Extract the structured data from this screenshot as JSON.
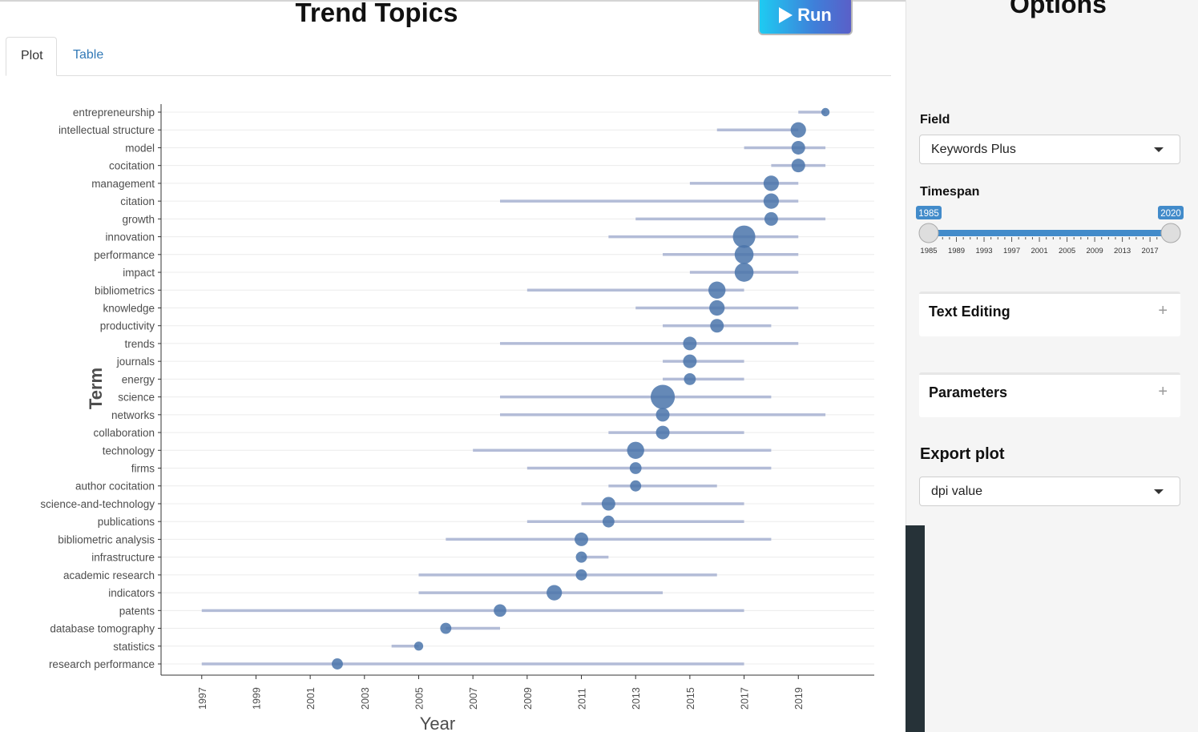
{
  "header": {
    "title": "Trend Topics",
    "run_label": "Run"
  },
  "tabs": [
    {
      "label": "Plot",
      "active": true
    },
    {
      "label": "Table",
      "active": false
    }
  ],
  "sidebar": {
    "title": "Options",
    "field": {
      "label": "Field",
      "value": "Keywords Plus"
    },
    "timespan": {
      "label": "Timespan",
      "min": 1985,
      "max": 2020,
      "value_from": 1985,
      "value_to": 2020,
      "tick_labels": [
        "1985",
        "1989",
        "1993",
        "1997",
        "2001",
        "2005",
        "2009",
        "2013",
        "2017"
      ]
    },
    "panels": [
      {
        "title": "Text Editing",
        "icon": "plus-icon"
      },
      {
        "title": "Parameters",
        "icon": "plus-icon"
      }
    ],
    "export": {
      "label": "Export plot",
      "value": "dpi value"
    }
  },
  "colors": {
    "bar": "#b3bcd7",
    "point": "#4a74aa",
    "slider": "#428bca",
    "tab_link": "#337ab7"
  },
  "chart_data": {
    "type": "scatter",
    "xlabel": "Year",
    "ylabel": "Term",
    "xticks": [
      1997,
      1999,
      2001,
      2003,
      2005,
      2007,
      2009,
      2011,
      2013,
      2015,
      2017,
      2019
    ],
    "xlim": [
      1995.5,
      2021.8
    ],
    "points": [
      {
        "term": "entrepreneurship",
        "q1": 2019,
        "q3": 2020,
        "median": 2020,
        "size": 1
      },
      {
        "term": "intellectual structure",
        "q1": 2016,
        "q3": 2019,
        "median": 2019,
        "size": 3
      },
      {
        "term": "model",
        "q1": 2017,
        "q3": 2020,
        "median": 2019,
        "size": 2.5
      },
      {
        "term": "cocitation",
        "q1": 2018,
        "q3": 2020,
        "median": 2019,
        "size": 2.5
      },
      {
        "term": "management",
        "q1": 2015,
        "q3": 2019,
        "median": 2018,
        "size": 3
      },
      {
        "term": "citation",
        "q1": 2008,
        "q3": 2019,
        "median": 2018,
        "size": 3
      },
      {
        "term": "growth",
        "q1": 2013,
        "q3": 2020,
        "median": 2018,
        "size": 2.5
      },
      {
        "term": "innovation",
        "q1": 2012,
        "q3": 2019,
        "median": 2017,
        "size": 5
      },
      {
        "term": "performance",
        "q1": 2014,
        "q3": 2019,
        "median": 2017,
        "size": 4
      },
      {
        "term": "impact",
        "q1": 2015,
        "q3": 2019,
        "median": 2017,
        "size": 4
      },
      {
        "term": "bibliometrics",
        "q1": 2009,
        "q3": 2017,
        "median": 2016,
        "size": 3.5
      },
      {
        "term": "knowledge",
        "q1": 2013,
        "q3": 2019,
        "median": 2016,
        "size": 3
      },
      {
        "term": "productivity",
        "q1": 2014,
        "q3": 2018,
        "median": 2016,
        "size": 2.5
      },
      {
        "term": "trends",
        "q1": 2008,
        "q3": 2019,
        "median": 2015,
        "size": 2.5
      },
      {
        "term": "journals",
        "q1": 2014,
        "q3": 2017,
        "median": 2015,
        "size": 2.5
      },
      {
        "term": "energy",
        "q1": 2014,
        "q3": 2017,
        "median": 2015,
        "size": 2
      },
      {
        "term": "science",
        "q1": 2008,
        "q3": 2018,
        "median": 2014,
        "size": 5.5
      },
      {
        "term": "networks",
        "q1": 2008,
        "q3": 2020,
        "median": 2014,
        "size": 2.5
      },
      {
        "term": "collaboration",
        "q1": 2012,
        "q3": 2017,
        "median": 2014,
        "size": 2.5
      },
      {
        "term": "technology",
        "q1": 2007,
        "q3": 2018,
        "median": 2013,
        "size": 3.5
      },
      {
        "term": "firms",
        "q1": 2009,
        "q3": 2018,
        "median": 2013,
        "size": 2
      },
      {
        "term": "author cocitation",
        "q1": 2012,
        "q3": 2016,
        "median": 2013,
        "size": 1.8
      },
      {
        "term": "science-and-technology",
        "q1": 2011,
        "q3": 2017,
        "median": 2012,
        "size": 2.5
      },
      {
        "term": "publications",
        "q1": 2009,
        "q3": 2017,
        "median": 2012,
        "size": 2
      },
      {
        "term": "bibliometric analysis",
        "q1": 2006,
        "q3": 2018,
        "median": 2011,
        "size": 2.5
      },
      {
        "term": "infrastructure",
        "q1": 2011,
        "q3": 2012,
        "median": 2011,
        "size": 1.8
      },
      {
        "term": "academic research",
        "q1": 2005,
        "q3": 2016,
        "median": 2011,
        "size": 1.8
      },
      {
        "term": "indicators",
        "q1": 2005,
        "q3": 2014,
        "median": 2010,
        "size": 3
      },
      {
        "term": "patents",
        "q1": 1997,
        "q3": 2017,
        "median": 2008,
        "size": 2.2
      },
      {
        "term": "database tomography",
        "q1": 2006,
        "q3": 2008,
        "median": 2006,
        "size": 1.8
      },
      {
        "term": "statistics",
        "q1": 2004,
        "q3": 2005,
        "median": 2005,
        "size": 1.2
      },
      {
        "term": "research performance",
        "q1": 1997,
        "q3": 2017,
        "median": 2002,
        "size": 1.8
      }
    ]
  }
}
